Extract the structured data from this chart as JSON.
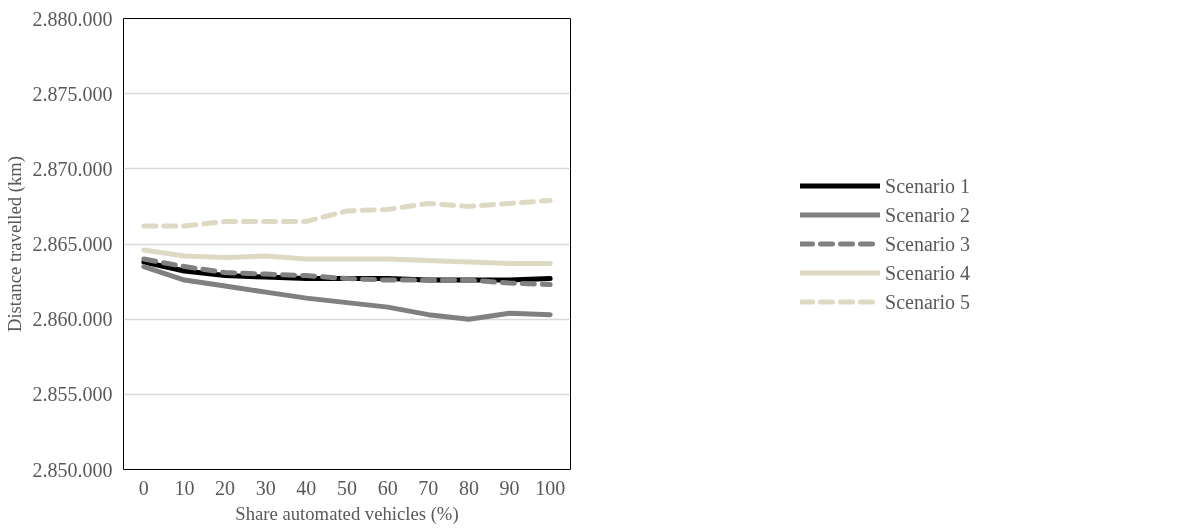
{
  "chart_data": {
    "type": "line",
    "xlabel": "Share automated vehicles (%)",
    "ylabel": "Distance travelled (km)",
    "categories": [
      "0",
      "10",
      "20",
      "30",
      "40",
      "50",
      "60",
      "70",
      "80",
      "90",
      "100"
    ],
    "series": [
      {
        "name": "Scenario 1",
        "color": "#000000",
        "line_style": "solid",
        "values": [
          2863800,
          2863200,
          2862900,
          2862800,
          2862700,
          2862700,
          2862700,
          2862600,
          2862600,
          2862600,
          2862700
        ]
      },
      {
        "name": "Scenario 2",
        "color": "#808080",
        "line_style": "solid",
        "values": [
          2863500,
          2862600,
          2862200,
          2861800,
          2861400,
          2861100,
          2860800,
          2860300,
          2860000,
          2860400,
          2860300
        ]
      },
      {
        "name": "Scenario 3",
        "color": "#808080",
        "line_style": "dashed",
        "values": [
          2864000,
          2863500,
          2863100,
          2863000,
          2862900,
          2862700,
          2862600,
          2862600,
          2862600,
          2862400,
          2862300
        ]
      },
      {
        "name": "Scenario 4",
        "color": "#ddd9c3",
        "line_style": "solid",
        "values": [
          2864600,
          2864200,
          2864100,
          2864200,
          2864000,
          2864000,
          2864000,
          2863900,
          2863800,
          2863700,
          2863700
        ]
      },
      {
        "name": "Scenario 5",
        "color": "#ddd9c3",
        "line_style": "dashed",
        "values": [
          2866200,
          2866200,
          2866500,
          2866500,
          2866500,
          2867200,
          2867300,
          2867700,
          2867500,
          2867700,
          2867900
        ]
      }
    ],
    "ylim": [
      2850000,
      2880000
    ],
    "yticks": [
      {
        "value": 2850000,
        "label": "2.850.000"
      },
      {
        "value": 2855000,
        "label": "2.855.000"
      },
      {
        "value": 2860000,
        "label": "2.860.000"
      },
      {
        "value": 2865000,
        "label": "2.865.000"
      },
      {
        "value": 2870000,
        "label": "2.870.000"
      },
      {
        "value": 2875000,
        "label": "2.875.000"
      },
      {
        "value": 2880000,
        "label": "2.880.000"
      }
    ],
    "grid": "y",
    "legend": "right",
    "marker": "none"
  }
}
